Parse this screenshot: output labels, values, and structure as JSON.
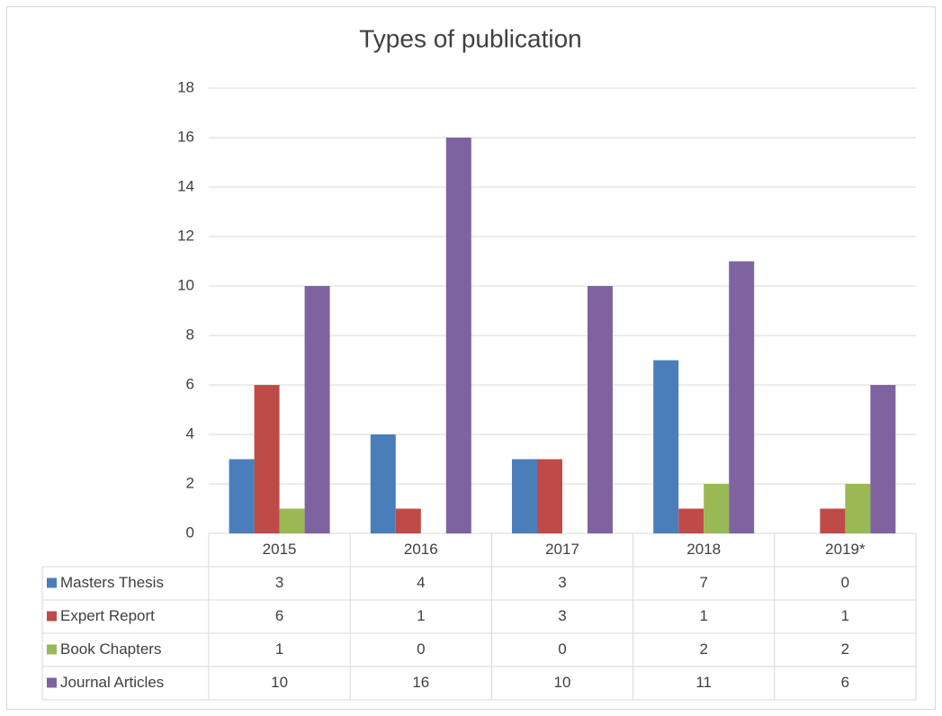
{
  "chart_data": {
    "type": "bar",
    "title": "Types of publication",
    "categories": [
      "2015",
      "2016",
      "2017",
      "2018",
      "2019*"
    ],
    "series": [
      {
        "name": "Masters Thesis",
        "color": "#4a7ebb",
        "values": [
          3,
          4,
          3,
          7,
          0
        ]
      },
      {
        "name": "Expert Report",
        "color": "#be4b48",
        "values": [
          6,
          1,
          3,
          1,
          1
        ]
      },
      {
        "name": "Book Chapters",
        "color": "#98b954",
        "values": [
          1,
          0,
          0,
          2,
          2
        ]
      },
      {
        "name": "Journal Articles",
        "color": "#7f63a1",
        "values": [
          10,
          16,
          10,
          11,
          6
        ]
      }
    ],
    "ylim": [
      0,
      18
    ],
    "yticks": [
      0,
      2,
      4,
      6,
      8,
      10,
      12,
      14,
      16,
      18
    ],
    "grid": true,
    "data_table": true
  }
}
